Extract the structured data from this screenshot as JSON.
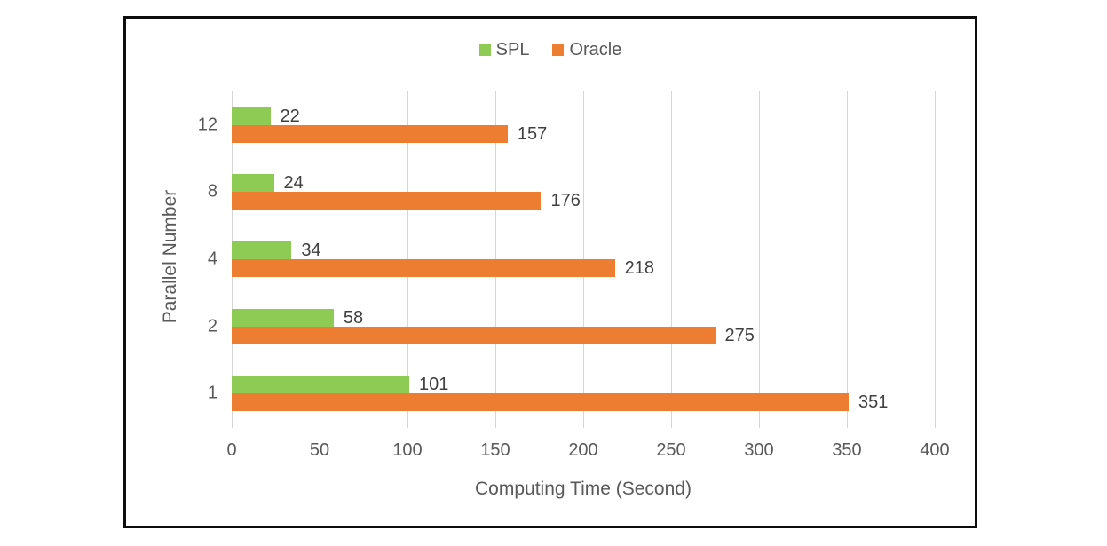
{
  "page": {
    "background": "#ffffff",
    "frame_border_color": "#0d0d0d"
  },
  "legend": {
    "position": "top-center",
    "items": [
      {
        "label": "SPL",
        "color": "#8dcb55"
      },
      {
        "label": "Oracle",
        "color": "#ed7d31"
      }
    ]
  },
  "chart_data": {
    "type": "bar",
    "orientation": "horizontal",
    "title": "",
    "xlabel": "Computing Time (Second)",
    "ylabel": "Parallel Number",
    "categories": [
      "12",
      "8",
      "4",
      "2",
      "1"
    ],
    "series": [
      {
        "name": "SPL",
        "color": "#8dcb55",
        "values": [
          22,
          24,
          34,
          58,
          101
        ]
      },
      {
        "name": "Oracle",
        "color": "#ed7d31",
        "values": [
          157,
          176,
          218,
          275,
          351
        ]
      }
    ],
    "xlim": [
      0,
      400
    ],
    "xticks": [
      0,
      50,
      100,
      150,
      200,
      250,
      300,
      350,
      400
    ],
    "grid": "vertical",
    "gridline_color": "#d6d6d6",
    "tick_label_color": "#595959",
    "value_label_color": "#404040",
    "legend_position": "top-center",
    "value_labels_shown": true
  }
}
